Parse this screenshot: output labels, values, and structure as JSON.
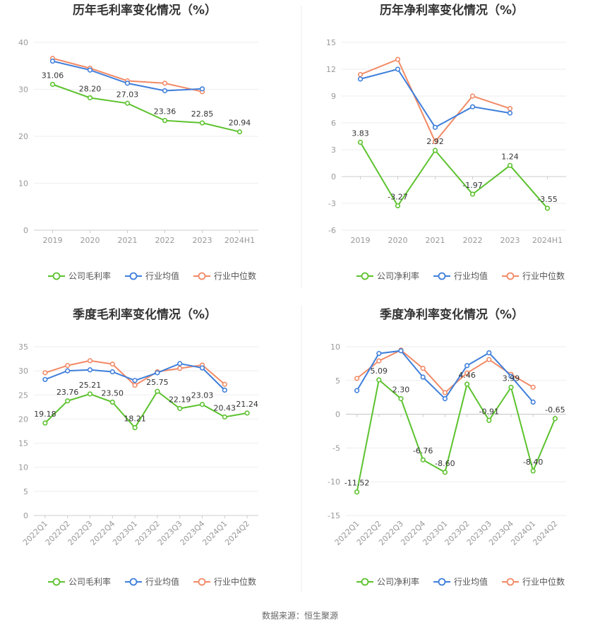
{
  "source_note": "数据来源：恒生聚源",
  "series_colors": [
    "#5cc22e",
    "#3f7fdb",
    "#f28a66"
  ],
  "chart_data": [
    {
      "type": "line",
      "title": "历年毛利率变化情况（%）",
      "categories": [
        "2019",
        "2020",
        "2021",
        "2022",
        "2023",
        "2024H1"
      ],
      "ylim": [
        0,
        40
      ],
      "yticks": [
        0,
        10,
        20,
        30,
        40
      ],
      "grid": true,
      "legend": "bottom",
      "series": [
        {
          "name": "公司毛利率",
          "values": [
            31.06,
            28.2,
            27.03,
            23.36,
            22.85,
            20.94
          ],
          "labels": [
            "31.06",
            "28.20",
            "27.03",
            "23.36",
            "22.85",
            "20.94"
          ]
        },
        {
          "name": "行业均值",
          "values": [
            36.0,
            34.1,
            31.3,
            29.7,
            30.1,
            null
          ]
        },
        {
          "name": "行业中位数",
          "values": [
            36.6,
            34.5,
            31.8,
            31.3,
            29.5,
            null
          ]
        }
      ]
    },
    {
      "type": "line",
      "title": "历年净利率变化情况（%）",
      "categories": [
        "2019",
        "2020",
        "2021",
        "2022",
        "2023",
        "2024H1"
      ],
      "ylim": [
        -6,
        15
      ],
      "yticks": [
        -6,
        -3,
        0,
        3,
        6,
        9,
        12,
        15
      ],
      "grid": true,
      "legend": "bottom",
      "series": [
        {
          "name": "公司净利率",
          "values": [
            3.83,
            -3.27,
            2.92,
            -1.97,
            1.24,
            -3.55
          ],
          "labels": [
            "3.83",
            "-3.27",
            "2.92",
            "-1.97",
            "1.24",
            "-3.55"
          ]
        },
        {
          "name": "行业均值",
          "values": [
            10.9,
            12.0,
            5.5,
            7.8,
            7.1,
            null
          ]
        },
        {
          "name": "行业中位数",
          "values": [
            11.4,
            13.1,
            3.9,
            9.0,
            7.6,
            null
          ]
        }
      ]
    },
    {
      "type": "line",
      "title": "季度毛利率变化情况（%）",
      "categories": [
        "2022Q1",
        "2022Q2",
        "2022Q3",
        "2022Q4",
        "2023Q1",
        "2023Q2",
        "2023Q3",
        "2023Q4",
        "2024Q1",
        "2024Q2"
      ],
      "ylim": [
        0,
        35
      ],
      "yticks": [
        0,
        5,
        10,
        15,
        20,
        25,
        30,
        35
      ],
      "grid": true,
      "legend": "bottom",
      "series": [
        {
          "name": "公司毛利率",
          "values": [
            19.18,
            23.76,
            25.21,
            23.5,
            18.21,
            25.75,
            22.19,
            23.03,
            20.43,
            21.24
          ],
          "labels": [
            "19.18",
            "23.76",
            "25.21",
            "23.50",
            "18.21",
            "25.75",
            "22.19",
            "23.03",
            "20.43",
            "21.24"
          ]
        },
        {
          "name": "行业均值",
          "values": [
            28.2,
            30.0,
            30.2,
            29.8,
            28.0,
            29.6,
            31.5,
            30.6,
            26.0,
            null
          ]
        },
        {
          "name": "行业中位数",
          "values": [
            29.6,
            31.1,
            32.1,
            31.4,
            27.0,
            29.8,
            30.5,
            31.2,
            27.2,
            null
          ]
        }
      ]
    },
    {
      "type": "line",
      "title": "季度净利率变化情况（%）",
      "categories": [
        "2022Q1",
        "2022Q2",
        "2022Q3",
        "2022Q4",
        "2023Q1",
        "2023Q2",
        "2023Q3",
        "2023Q4",
        "2024Q1",
        "2024Q2"
      ],
      "ylim": [
        -15,
        10
      ],
      "yticks": [
        -15,
        -10,
        -5,
        0,
        5,
        10
      ],
      "grid": true,
      "legend": "bottom",
      "series": [
        {
          "name": "公司净利率",
          "values": [
            -11.52,
            5.09,
            2.3,
            -6.76,
            -8.6,
            4.46,
            -0.91,
            3.99,
            -8.4,
            -0.65
          ],
          "labels": [
            "-11.52",
            "5.09",
            "2.30",
            "-6.76",
            "-8.60",
            "4.46",
            "-0.91",
            "3.99",
            "-8.40",
            "-0.65"
          ]
        },
        {
          "name": "行业均值",
          "values": [
            3.5,
            9.0,
            9.4,
            5.5,
            2.3,
            7.2,
            9.1,
            5.6,
            1.8,
            null
          ]
        },
        {
          "name": "行业中位数",
          "values": [
            5.3,
            7.9,
            9.5,
            6.8,
            3.2,
            6.1,
            8.1,
            5.9,
            4.0,
            null
          ]
        }
      ]
    }
  ]
}
